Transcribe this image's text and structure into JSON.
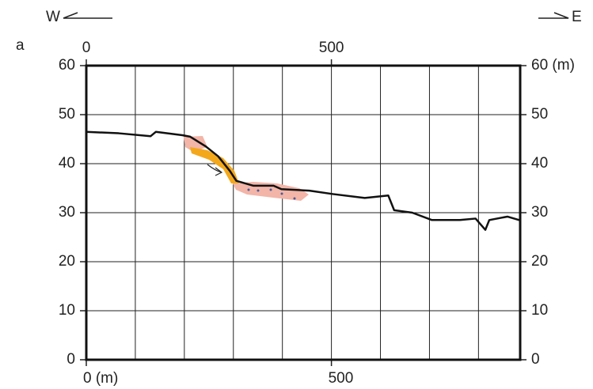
{
  "chart_data": {
    "type": "line",
    "panel_label": "a",
    "west_label": "W",
    "east_label": "E",
    "x": [
      0,
      66,
      131,
      142,
      196,
      212,
      244,
      269,
      293,
      306,
      341,
      382,
      398,
      455,
      503,
      568,
      616,
      628,
      665,
      705,
      762,
      794,
      814,
      822,
      859,
      883
    ],
    "series": [
      {
        "color": "#111111",
        "values": [
          46.5,
          46.2,
          45.6,
          46.5,
          45.8,
          45.5,
          43.5,
          41.5,
          38.5,
          36.5,
          35.5,
          35.5,
          34.8,
          34.5,
          33.8,
          33.0,
          33.5,
          30.5,
          30.0,
          28.5,
          28.5,
          28.8,
          26.5,
          28.5,
          29.2,
          28.5
        ]
      }
    ],
    "xlim": [
      0,
      885
    ],
    "xticks": [
      {
        "value": 0,
        "label": "0 (m)"
      },
      500
    ],
    "x2ticks": [
      0,
      500
    ],
    "x_minor_ticks": [
      100,
      200,
      300,
      400,
      500,
      600,
      700,
      800
    ],
    "ylim": [
      0,
      60
    ],
    "yticks": [
      0,
      10,
      20,
      30,
      40,
      50,
      60
    ],
    "y2lim": [
      0,
      60
    ],
    "y2ticks": [
      0,
      10,
      20,
      30,
      40,
      50,
      {
        "value": 60,
        "label": "60 (m)"
      }
    ],
    "grid": true
  }
}
